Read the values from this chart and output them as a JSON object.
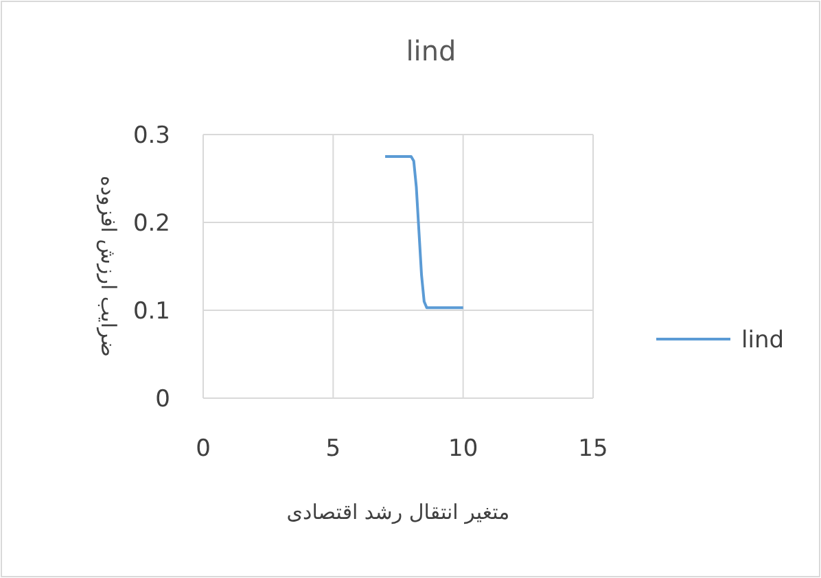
{
  "chart_data": {
    "type": "line",
    "title": "lind",
    "xlabel": "متغیر انتقال رشد اقتصادی",
    "ylabel": "ضرایب ارزش افزوده",
    "series": [
      {
        "name": "lind",
        "color": "#5b9bd5",
        "x": [
          7,
          8,
          8.1,
          8.2,
          8.3,
          8.4,
          8.5,
          8.6,
          10
        ],
        "values": [
          0.275,
          0.275,
          0.27,
          0.24,
          0.19,
          0.14,
          0.11,
          0.103,
          0.103
        ]
      }
    ],
    "xlim": [
      0,
      15
    ],
    "ylim": [
      0,
      0.3
    ],
    "xticks": [
      0,
      5,
      10,
      15
    ],
    "yticks": [
      0,
      0.1,
      0.2,
      0.3
    ],
    "grid": true,
    "legend": "right"
  }
}
